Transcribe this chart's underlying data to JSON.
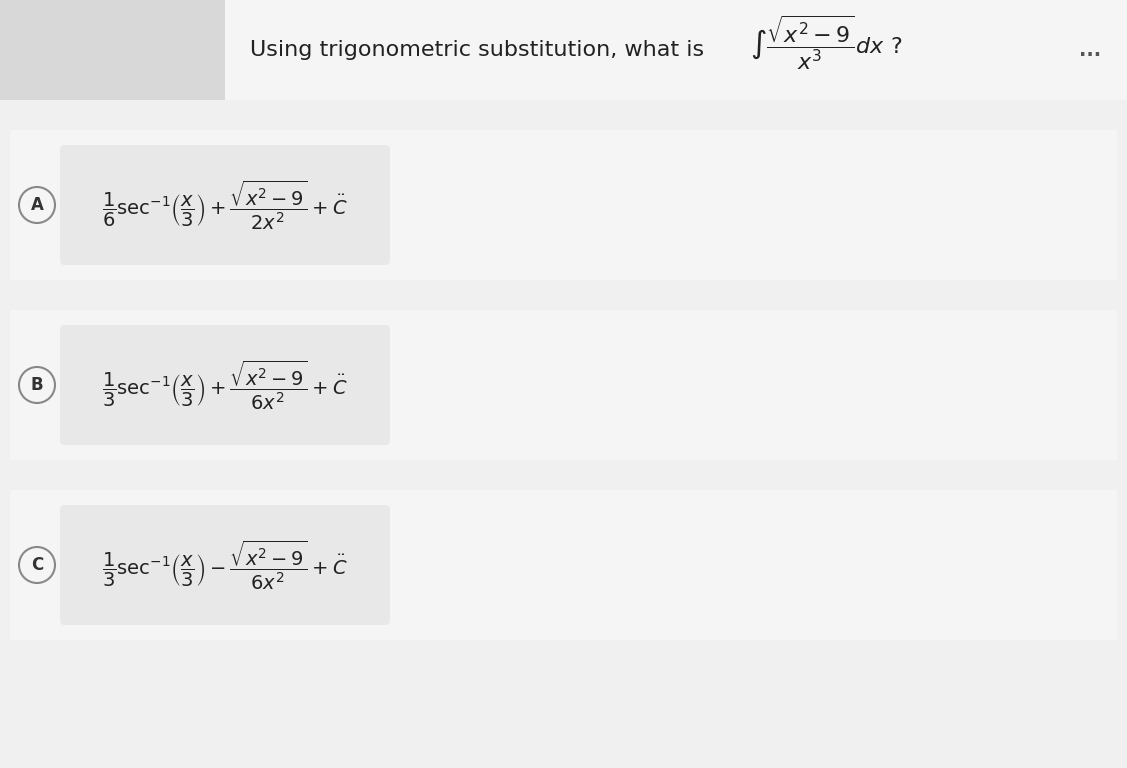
{
  "title_text": "Using trigonometric substitution, what is",
  "integral_expr": "$\\int \\frac{\\sqrt{x^2-9}}{x^3}dx$ ?",
  "background_color": "#f0f0f0",
  "panel_color": "#ffffff",
  "answer_box_color": "#e8e8e8",
  "option_A_label": "A",
  "option_B_label": "B",
  "option_C_label": "C",
  "option_A_text": "$\\frac{1}{6}\\sec^{-1}\\!\\left(\\frac{x}{3}\\right)+\\frac{\\sqrt{x^2-9}}{2x^2}+C$",
  "option_B_text": "$\\frac{1}{3}\\sec^{-1}\\!\\left(\\frac{x}{3}\\right)+\\frac{\\sqrt{x^2-9}}{6x^2}+C$",
  "option_C_text": "$\\frac{1}{3}\\sec^{-1}\\!\\left(\\frac{x}{3}\\right)-\\frac{\\sqrt{x^2-9}}{6x^2}+C$",
  "dots": "...",
  "header_bg": "#f5f5f5",
  "left_panel_color": "#e8e8e8"
}
